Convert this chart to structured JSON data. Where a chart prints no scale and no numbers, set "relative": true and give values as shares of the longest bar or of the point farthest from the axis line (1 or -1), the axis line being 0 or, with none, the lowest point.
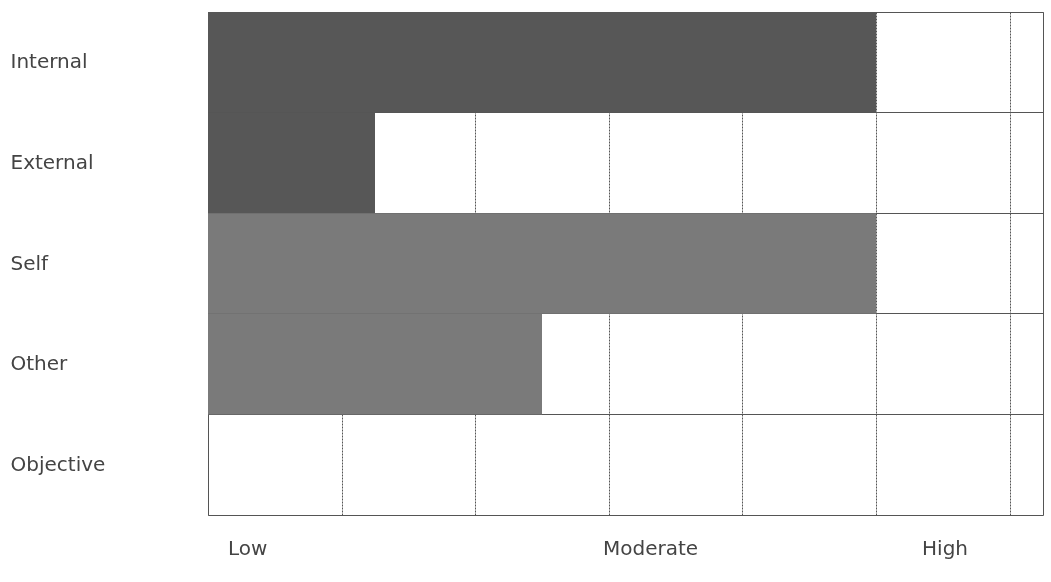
{
  "chart_data": {
    "type": "bar",
    "orientation": "horizontal",
    "relative": true,
    "categories": [
      "Internal",
      "External",
      "Self",
      "Other",
      "Objective"
    ],
    "values": [
      1,
      0.25,
      1,
      0.5,
      0
    ],
    "colors": [
      "#575757",
      "#575757",
      "#7a7a7a",
      "#7a7a7a",
      "#7a7a7a"
    ],
    "xlim": [
      0,
      1.25
    ],
    "annotations": [
      "Low",
      "Moderate",
      "High"
    ],
    "grid": true
  }
}
